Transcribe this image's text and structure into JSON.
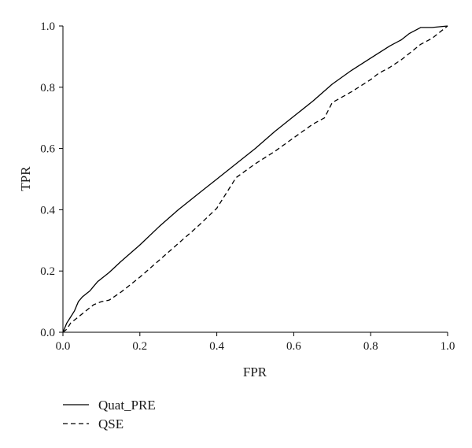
{
  "chart_data": {
    "type": "line",
    "title": "",
    "xlabel": "FPR",
    "ylabel": "TPR",
    "xlim": [
      0,
      1
    ],
    "ylim": [
      0,
      1
    ],
    "xticks": [
      "0.0",
      "0.2",
      "0.4",
      "0.6",
      "0.8",
      "1.0"
    ],
    "yticks": [
      "0.0",
      "0.2",
      "0.4",
      "0.6",
      "0.8",
      "1.0"
    ],
    "grid": false,
    "legend_position": "bottom-left",
    "series": [
      {
        "name": "Quat_PRE",
        "style": "solid",
        "color": "#000000",
        "points": [
          [
            0.0,
            0.0
          ],
          [
            0.01,
            0.03
          ],
          [
            0.02,
            0.05
          ],
          [
            0.03,
            0.07
          ],
          [
            0.04,
            0.1
          ],
          [
            0.05,
            0.115
          ],
          [
            0.06,
            0.125
          ],
          [
            0.07,
            0.135
          ],
          [
            0.08,
            0.15
          ],
          [
            0.09,
            0.165
          ],
          [
            0.1,
            0.175
          ],
          [
            0.12,
            0.195
          ],
          [
            0.15,
            0.23
          ],
          [
            0.2,
            0.285
          ],
          [
            0.25,
            0.345
          ],
          [
            0.3,
            0.4
          ],
          [
            0.35,
            0.45
          ],
          [
            0.4,
            0.5
          ],
          [
            0.45,
            0.55
          ],
          [
            0.5,
            0.6
          ],
          [
            0.55,
            0.655
          ],
          [
            0.6,
            0.705
          ],
          [
            0.65,
            0.755
          ],
          [
            0.7,
            0.81
          ],
          [
            0.75,
            0.855
          ],
          [
            0.8,
            0.895
          ],
          [
            0.85,
            0.935
          ],
          [
            0.88,
            0.955
          ],
          [
            0.9,
            0.975
          ],
          [
            0.93,
            0.995
          ],
          [
            0.96,
            0.995
          ],
          [
            1.0,
            1.0
          ]
        ]
      },
      {
        "name": "QSE",
        "style": "dashed",
        "color": "#000000",
        "points": [
          [
            0.0,
            0.0
          ],
          [
            0.01,
            0.01
          ],
          [
            0.02,
            0.03
          ],
          [
            0.04,
            0.05
          ],
          [
            0.06,
            0.07
          ],
          [
            0.08,
            0.09
          ],
          [
            0.1,
            0.1
          ],
          [
            0.12,
            0.105
          ],
          [
            0.15,
            0.13
          ],
          [
            0.2,
            0.18
          ],
          [
            0.25,
            0.235
          ],
          [
            0.3,
            0.29
          ],
          [
            0.35,
            0.345
          ],
          [
            0.4,
            0.405
          ],
          [
            0.45,
            0.505
          ],
          [
            0.5,
            0.55
          ],
          [
            0.55,
            0.59
          ],
          [
            0.6,
            0.635
          ],
          [
            0.65,
            0.68
          ],
          [
            0.68,
            0.7
          ],
          [
            0.7,
            0.75
          ],
          [
            0.75,
            0.785
          ],
          [
            0.8,
            0.825
          ],
          [
            0.82,
            0.845
          ],
          [
            0.85,
            0.865
          ],
          [
            0.88,
            0.89
          ],
          [
            0.9,
            0.91
          ],
          [
            0.93,
            0.94
          ],
          [
            0.96,
            0.96
          ],
          [
            1.0,
            1.0
          ]
        ]
      }
    ]
  }
}
